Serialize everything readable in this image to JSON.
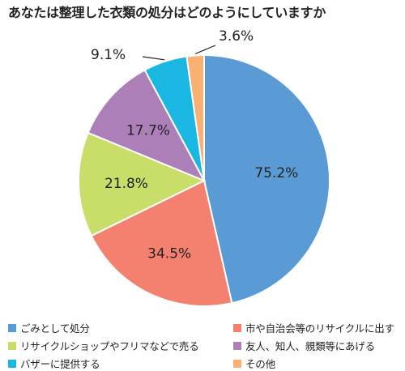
{
  "chart_data": {
    "type": "pie",
    "title": "あなたは整理した衣類の処分はどのようにしていますか",
    "slices": [
      {
        "name": "ごみとして処分",
        "value": 75.2,
        "label": "75.2%",
        "color": "#5b9bd5"
      },
      {
        "name": "市や自治会等のリサイクルに出す",
        "value": 34.5,
        "label": "34.5%",
        "color": "#f4806f"
      },
      {
        "name": "リサイクルショップやフリマなどで売る",
        "value": 21.8,
        "label": "21.8%",
        "color": "#c9dd69"
      },
      {
        "name": "友人、知人、親類等にあげる",
        "value": 17.7,
        "label": "17.7%",
        "color": "#ad7fb8"
      },
      {
        "name": "バザーに提供する",
        "value": 9.1,
        "label": "9.1%",
        "color": "#1ab7e2"
      },
      {
        "name": "その他",
        "value": 3.6,
        "label": "3.6%",
        "color": "#f9b072"
      }
    ],
    "legend_position": "bottom"
  }
}
